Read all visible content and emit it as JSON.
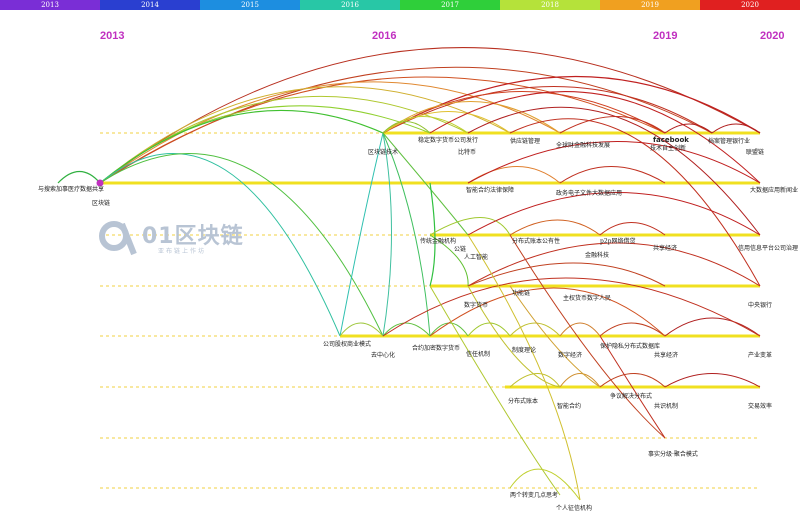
{
  "timeline": {
    "segments": [
      {
        "label": "2013",
        "color": "#7a2ed6"
      },
      {
        "label": "2014",
        "color": "#2a3fd0"
      },
      {
        "label": "2015",
        "color": "#1d8ee0"
      },
      {
        "label": "2016",
        "color": "#28c7a6"
      },
      {
        "label": "2017",
        "color": "#2fcf3a"
      },
      {
        "label": "2018",
        "color": "#b5e23a"
      },
      {
        "label": "2019",
        "color": "#f0a020"
      },
      {
        "label": "2020",
        "color": "#e02020"
      }
    ]
  },
  "years": {
    "y2013": "2013",
    "y2016": "2016",
    "y2019": "2019",
    "y2020": "2020"
  },
  "watermark": {
    "text": "01区块链",
    "sub": "亚布链上作坊"
  },
  "nodes": {
    "yiliao": "与搜索加事医疗数据共享",
    "qukuailian": "区块链",
    "qukuailian_jishu": "区块链技术",
    "huobi_jiaoyi": "稳定数字货币公司发行",
    "bite": "比特币",
    "gongyinglian": "供应链管理",
    "jinrong": "全球财金融科技发展",
    "facebook": "facebook",
    "facebook2": "技术自主创新",
    "dangan": "档案管理银行业",
    "lianmeng": "联盟链",
    "zhinenghe": "智能合约法律保障",
    "dianzizhengwu": "政务电子文件大数据应用",
    "dashuju": "大数据应用新闻业",
    "chuanshu": "传统金融机构",
    "gongyouyun": "公链",
    "rengongzhineng": "人工智能",
    "fenbuji": "分布式账本公有性",
    "p2p": "p2p网络借贷",
    "jinrongjigou": "金融科技",
    "gongxiang": "共享经济",
    "xinyongxinxi": "信用信息平台公司治理",
    "biteyuan": "数字货币",
    "gongneng": "功能链",
    "zhuquan": "主权货币数字人民",
    "zhongyangyinhang": "中央银行",
    "gongsiguquan": "公司股权商业模式",
    "quzhongxin": "去中心化",
    "heyue": "合约加密数字货币",
    "xinrenjizhi": "信任机制",
    "zhiduliyi": "制度理论",
    "shuzijingji": "数字经济",
    "baohu": "保护隐私分布式数据库",
    "gongxiangjingji": "共享经济",
    "chanye": "产业变革",
    "fenbushizhangben": "分布式账本",
    "zhinengheyue": "智能合约",
    "zhengyi": "争议解决分布式",
    "gongshi": "共识机制",
    "jiaoyi": "交易效率",
    "shishi": "事实分级·聚合模式",
    "liangge": "两个转变几点思考",
    "geren": "个人征信机构"
  }
}
